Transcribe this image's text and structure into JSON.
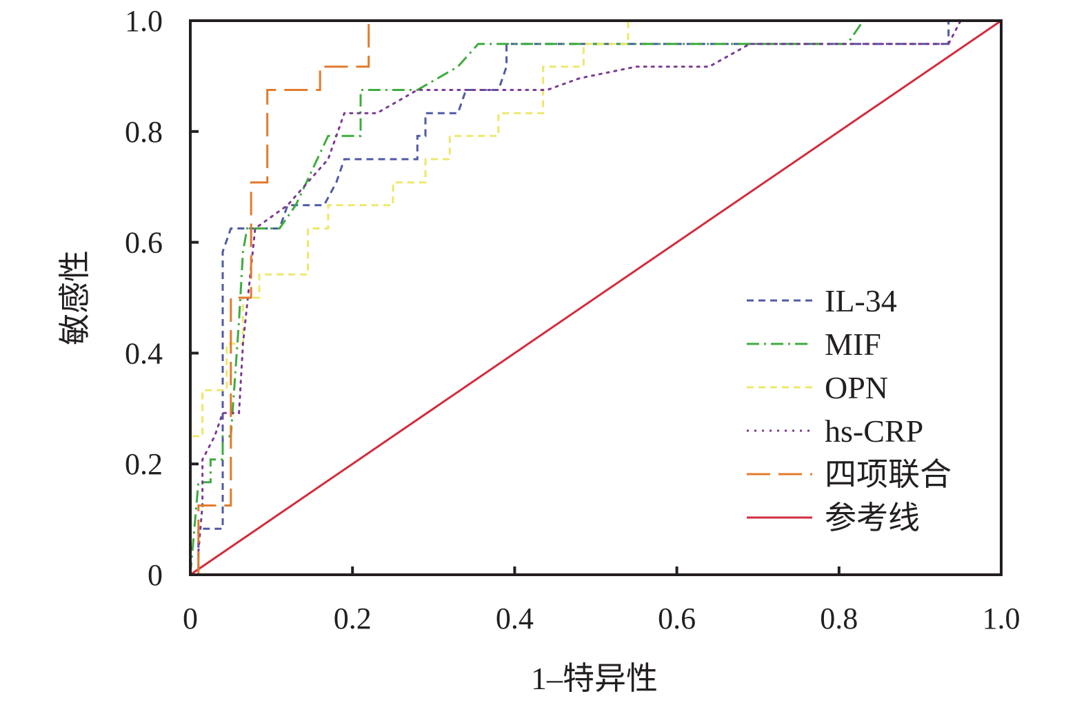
{
  "chart_data": {
    "type": "line",
    "xlabel": "1–特异性",
    "ylabel": "敏感性",
    "xlim": [
      0,
      1.0
    ],
    "ylim": [
      0,
      1.0
    ],
    "x_ticks": [
      "0",
      "0.2",
      "0.4",
      "0.6",
      "0.8",
      "1.0"
    ],
    "y_ticks": [
      "0",
      "0.2",
      "0.4",
      "0.6",
      "0.8",
      "1.0"
    ],
    "grid": false,
    "legend_position": "bottom-right",
    "series": [
      {
        "name": "IL-34",
        "color": "#4f5aa6",
        "dash": "dashed",
        "points": [
          [
            0.0,
            0.0
          ],
          [
            0.01,
            0.0
          ],
          [
            0.01,
            0.083
          ],
          [
            0.04,
            0.083
          ],
          [
            0.04,
            0.583
          ],
          [
            0.05,
            0.625
          ],
          [
            0.11,
            0.625
          ],
          [
            0.12,
            0.667
          ],
          [
            0.165,
            0.667
          ],
          [
            0.18,
            0.708
          ],
          [
            0.19,
            0.75
          ],
          [
            0.28,
            0.75
          ],
          [
            0.28,
            0.792
          ],
          [
            0.29,
            0.792
          ],
          [
            0.29,
            0.833
          ],
          [
            0.33,
            0.833
          ],
          [
            0.34,
            0.875
          ],
          [
            0.38,
            0.875
          ],
          [
            0.39,
            0.917
          ],
          [
            0.39,
            0.958
          ],
          [
            0.935,
            0.958
          ],
          [
            0.935,
            1.0
          ],
          [
            1.0,
            1.0
          ]
        ]
      },
      {
        "name": "MIF",
        "color": "#3dac3d",
        "dash": "dashdot",
        "points": [
          [
            0.0,
            0.0
          ],
          [
            0.01,
            0.167
          ],
          [
            0.025,
            0.167
          ],
          [
            0.025,
            0.208
          ],
          [
            0.04,
            0.208
          ],
          [
            0.04,
            0.25
          ],
          [
            0.05,
            0.25
          ],
          [
            0.06,
            0.458
          ],
          [
            0.065,
            0.583
          ],
          [
            0.07,
            0.625
          ],
          [
            0.11,
            0.625
          ],
          [
            0.13,
            0.667
          ],
          [
            0.17,
            0.792
          ],
          [
            0.21,
            0.792
          ],
          [
            0.21,
            0.875
          ],
          [
            0.28,
            0.875
          ],
          [
            0.33,
            0.917
          ],
          [
            0.355,
            0.958
          ],
          [
            0.81,
            0.958
          ],
          [
            0.83,
            1.0
          ],
          [
            1.0,
            1.0
          ]
        ]
      },
      {
        "name": "OPN",
        "color": "#ece86a",
        "dash": "dashed",
        "points": [
          [
            0.0,
            0.0
          ],
          [
            0.0,
            0.25
          ],
          [
            0.015,
            0.25
          ],
          [
            0.015,
            0.333
          ],
          [
            0.045,
            0.333
          ],
          [
            0.045,
            0.417
          ],
          [
            0.065,
            0.417
          ],
          [
            0.065,
            0.5
          ],
          [
            0.085,
            0.5
          ],
          [
            0.085,
            0.542
          ],
          [
            0.145,
            0.542
          ],
          [
            0.145,
            0.625
          ],
          [
            0.17,
            0.625
          ],
          [
            0.17,
            0.667
          ],
          [
            0.25,
            0.667
          ],
          [
            0.25,
            0.708
          ],
          [
            0.29,
            0.708
          ],
          [
            0.29,
            0.75
          ],
          [
            0.32,
            0.75
          ],
          [
            0.32,
            0.792
          ],
          [
            0.38,
            0.792
          ],
          [
            0.38,
            0.833
          ],
          [
            0.435,
            0.833
          ],
          [
            0.435,
            0.917
          ],
          [
            0.485,
            0.917
          ],
          [
            0.485,
            0.958
          ],
          [
            0.54,
            0.958
          ],
          [
            0.54,
            1.0
          ],
          [
            1.0,
            1.0
          ]
        ]
      },
      {
        "name": "hs-CRP",
        "color": "#7b3a93",
        "dash": "dotted",
        "points": [
          [
            0.01,
            0.042
          ],
          [
            0.015,
            0.125
          ],
          [
            0.015,
            0.208
          ],
          [
            0.03,
            0.25
          ],
          [
            0.04,
            0.292
          ],
          [
            0.06,
            0.292
          ],
          [
            0.065,
            0.417
          ],
          [
            0.08,
            0.625
          ],
          [
            0.12,
            0.667
          ],
          [
            0.17,
            0.75
          ],
          [
            0.19,
            0.833
          ],
          [
            0.23,
            0.833
          ],
          [
            0.28,
            0.875
          ],
          [
            0.44,
            0.875
          ],
          [
            0.48,
            0.896
          ],
          [
            0.55,
            0.917
          ],
          [
            0.64,
            0.917
          ],
          [
            0.69,
            0.958
          ],
          [
            0.935,
            0.958
          ],
          [
            0.95,
            1.0
          ],
          [
            1.0,
            1.0
          ]
        ]
      },
      {
        "name": "四项联合",
        "color": "#e27a2b",
        "dash": "longdash",
        "points": [
          [
            0.01,
            0.0
          ],
          [
            0.01,
            0.125
          ],
          [
            0.05,
            0.125
          ],
          [
            0.05,
            0.5
          ],
          [
            0.075,
            0.5
          ],
          [
            0.075,
            0.708
          ],
          [
            0.095,
            0.708
          ],
          [
            0.095,
            0.875
          ],
          [
            0.16,
            0.875
          ],
          [
            0.16,
            0.917
          ],
          [
            0.22,
            0.917
          ],
          [
            0.22,
            1.0
          ],
          [
            1.0,
            1.0
          ]
        ]
      },
      {
        "name": "参考线",
        "color": "#d22c3c",
        "dash": "solid",
        "points": [
          [
            0.0,
            0.0
          ],
          [
            1.0,
            1.0
          ]
        ]
      }
    ]
  }
}
